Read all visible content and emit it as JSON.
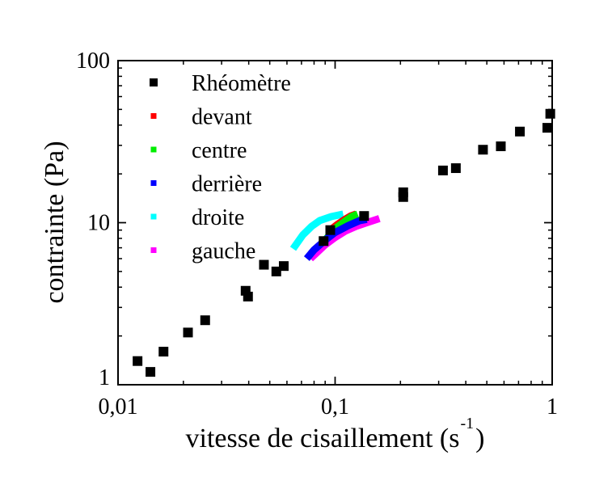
{
  "chart_data": {
    "type": "scatter",
    "title": "",
    "xlabel": "vitesse de cisaillement (s",
    "xlabel_sup": "-1",
    "xlabel_end": ")",
    "ylabel": "contrainte (Pa)",
    "xscale": "log",
    "yscale": "log",
    "xlim": [
      0.01,
      1
    ],
    "ylim": [
      1,
      100
    ],
    "x_ticks": [
      {
        "value": 0.01,
        "label": "0,01"
      },
      {
        "value": 0.1,
        "label": "0,1"
      },
      {
        "value": 1,
        "label": "1"
      }
    ],
    "y_ticks": [
      {
        "value": 1,
        "label": "1"
      },
      {
        "value": 10,
        "label": "10"
      },
      {
        "value": 100,
        "label": "100"
      }
    ],
    "grid": false,
    "legend_position": "top-left",
    "series": [
      {
        "name": "Rhéomètre",
        "color": "#000000",
        "style": "markers",
        "x": [
          0.0123,
          0.0141,
          0.0162,
          0.021,
          0.0252,
          0.0387,
          0.0397,
          0.047,
          0.0536,
          0.058,
          0.0885,
          0.095,
          0.136,
          0.206,
          0.206,
          0.314,
          0.36,
          0.48,
          0.58,
          0.71,
          0.95,
          0.98
        ],
        "y": [
          1.4,
          1.2,
          1.6,
          2.1,
          2.5,
          3.8,
          3.5,
          5.5,
          5.0,
          5.4,
          7.7,
          9.0,
          11,
          15.4,
          14.4,
          21,
          21.7,
          28.2,
          29.6,
          36.5,
          38.5,
          47
        ]
      },
      {
        "name": "devant",
        "color": "#ff0000",
        "style": "band",
        "x": [
          0.095,
          0.103,
          0.11,
          0.118,
          0.125
        ],
        "y": [
          9.0,
          9.8,
          10.4,
          11.0,
          11.3
        ]
      },
      {
        "name": "centre",
        "color": "#00ee00",
        "style": "band",
        "x": [
          0.09,
          0.1,
          0.11,
          0.119,
          0.127
        ],
        "y": [
          7.8,
          9.2,
          10.1,
          10.9,
          11.3
        ]
      },
      {
        "name": "derrière",
        "color": "#0000ff",
        "style": "band",
        "x": [
          0.074,
          0.08,
          0.09,
          0.1,
          0.115,
          0.13,
          0.14
        ],
        "y": [
          6.0,
          6.8,
          7.8,
          8.7,
          9.6,
          10.3,
          10.5
        ]
      },
      {
        "name": "droite",
        "color": "#00ffff",
        "style": "band",
        "x": [
          0.064,
          0.071,
          0.078,
          0.085,
          0.096,
          0.109
        ],
        "y": [
          6.9,
          8.4,
          9.5,
          10.3,
          10.9,
          11.3
        ]
      },
      {
        "name": "gauche",
        "color": "#ff00ff",
        "style": "band",
        "x": [
          0.077,
          0.083,
          0.09,
          0.1,
          0.112,
          0.125,
          0.14,
          0.16
        ],
        "y": [
          6.0,
          6.6,
          7.3,
          8.1,
          8.9,
          9.5,
          10.0,
          10.6
        ]
      }
    ]
  }
}
